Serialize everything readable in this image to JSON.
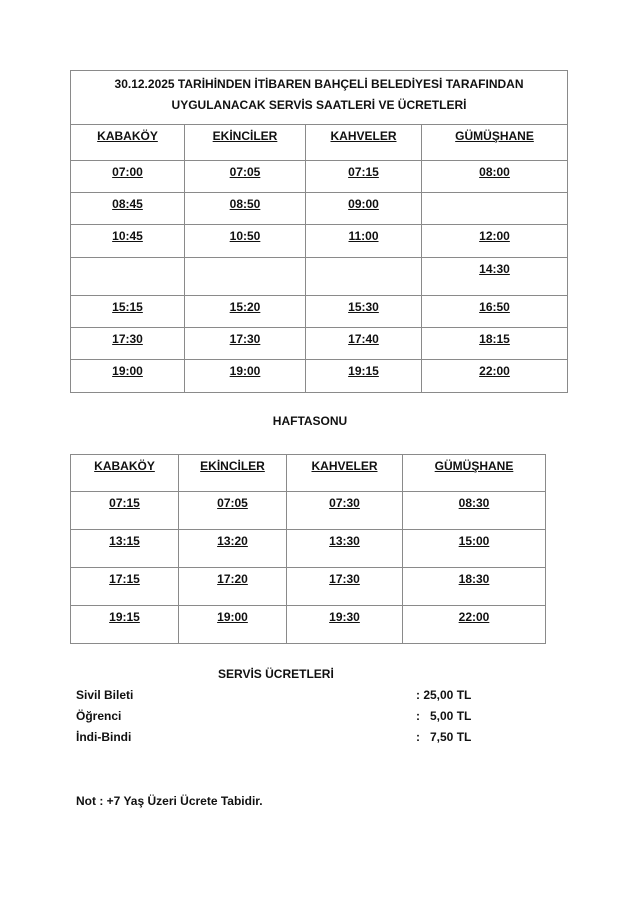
{
  "title_line1": "30.12.2025 TARİHİNDEN İTİBAREN BAHÇELİ BELEDİYESİ TARAFINDAN",
  "title_line2": "UYGULANACAK SERVİS SAATLERİ VE ÜCRETLERİ",
  "weekday": {
    "headers": [
      "KABAKÖY",
      "EKİNCİLER",
      "KAHVELER",
      "GÜMÜŞHANE"
    ],
    "rows": [
      [
        "07:00",
        "07:05",
        "07:15",
        "08:00"
      ],
      [
        "08:45",
        "08:50",
        "09:00",
        ""
      ],
      [
        "10:45",
        "10:50",
        "11:00",
        "12:00"
      ],
      [
        "",
        "",
        "",
        "14:30"
      ],
      [
        "15:15",
        "15:20",
        "15:30",
        "16:50"
      ],
      [
        "17:30",
        "17:30",
        "17:40",
        "18:15"
      ],
      [
        "19:00",
        "19:00",
        "19:15",
        "22:00"
      ]
    ]
  },
  "weekend_title": "HAFTASONU",
  "weekend": {
    "headers": [
      "KABAKÖY",
      "EKİNCİLER",
      "KAHVELER",
      "GÜMÜŞHANE"
    ],
    "rows": [
      [
        "07:15",
        "07:05",
        "07:30",
        "08:30"
      ],
      [
        "13:15",
        "13:20",
        "13:30",
        "15:00"
      ],
      [
        "17:15",
        "17:20",
        "17:30",
        "18:30"
      ],
      [
        "19:15",
        "19:00",
        "19:30",
        "22:00"
      ]
    ]
  },
  "fees_title": "SERVİS ÜCRETLERİ",
  "fees": [
    {
      "label": "Sivil Bileti",
      "value": ": 25,00 TL"
    },
    {
      "label": "Öğrenci",
      "value": ":   5,00 TL"
    },
    {
      "label": "İndi-Bindi",
      "value": ":   7,50 TL"
    }
  ],
  "note": "Not : +7 Yaş Üzeri Ücrete Tabidir."
}
